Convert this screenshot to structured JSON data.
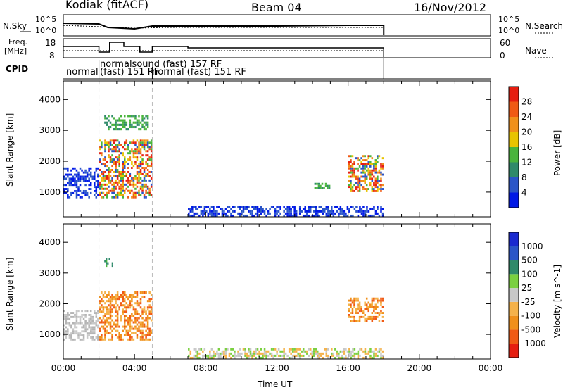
{
  "header": {
    "station": "Kodiak (fitACF)",
    "beam": "Beam 04",
    "date": "16/Nov/2012"
  },
  "top_panels": {
    "noise_left_label": "N.Sky",
    "noise_right_label": "N.Search",
    "noise_left_ticks": [
      "10^5",
      "10^0"
    ],
    "noise_right_ticks": [
      "10^5",
      "10^0"
    ],
    "freq_label_1": "Freq.",
    "freq_label_2": "[MHz]",
    "freq_ticks": [
      "18",
      "8"
    ],
    "nave_ticks": [
      "60",
      "0"
    ],
    "nave_label": "Nave",
    "cpid_label": "CPID",
    "cpid_entries": [
      "normal",
      "normalsound (fast) 157 RF",
      "(fast) 151 RF",
      "normal (fast) 151 RF"
    ]
  },
  "chart_data": [
    {
      "type": "heatmap",
      "title": "",
      "ylabel": "Slant Range [km]",
      "xlabel": "",
      "xlim": [
        "00:00",
        "24:00"
      ],
      "ylim": [
        200,
        4600
      ],
      "yticks": [
        "1000",
        "2000",
        "3000",
        "4000"
      ],
      "colorbar": {
        "label": "Power [dB]",
        "ticks": [
          "4",
          "8",
          "12",
          "16",
          "20",
          "24",
          "28"
        ],
        "colors": [
          "#0019e6",
          "#2a55c8",
          "#2f8a6a",
          "#49b43c",
          "#e8c400",
          "#f0901a",
          "#f05a14",
          "#e61e10"
        ]
      },
      "regions": [
        {
          "t0": 0.0,
          "t1": 2.0,
          "r0": 800,
          "r1": 1800,
          "level": "low"
        },
        {
          "t0": 2.0,
          "t1": 5.0,
          "r0": 800,
          "r1": 2700,
          "level": "high"
        },
        {
          "t0": 2.3,
          "t1": 4.8,
          "r0": 3000,
          "r1": 3500,
          "level": "mid"
        },
        {
          "t0": 7.0,
          "t1": 18.0,
          "r0": 200,
          "r1": 550,
          "level": "low"
        },
        {
          "t0": 14.0,
          "t1": 15.0,
          "r0": 1100,
          "r1": 1300,
          "level": "mid"
        },
        {
          "t0": 16.0,
          "t1": 18.0,
          "r0": 1000,
          "r1": 2200,
          "level": "high"
        }
      ]
    },
    {
      "type": "heatmap",
      "title": "",
      "ylabel": "Slant Range [km]",
      "xlabel": "Time UT",
      "xlim": [
        "00:00",
        "24:00"
      ],
      "ylim": [
        200,
        4600
      ],
      "yticks": [
        "1000",
        "2000",
        "3000",
        "4000"
      ],
      "xticks": [
        "00:00",
        "04:00",
        "08:00",
        "12:00",
        "16:00",
        "20:00",
        "00:00"
      ],
      "colorbar": {
        "label": "Velocity [m s^-1]",
        "ticks": [
          "-1000",
          "-500",
          "-100",
          "-25",
          "25",
          "100",
          "500",
          "1000"
        ],
        "colors": [
          "#e61e10",
          "#f05a14",
          "#f0901a",
          "#f5b24a",
          "#c8c8c8",
          "#7ad040",
          "#2f8a6a",
          "#2a55c8",
          "#1a2ad0"
        ]
      },
      "regions": [
        {
          "t0": 0.0,
          "t1": 2.0,
          "r0": 800,
          "r1": 1800,
          "level": "near-zero"
        },
        {
          "t0": 2.0,
          "t1": 5.0,
          "r0": 800,
          "r1": 2400,
          "level": "negative"
        },
        {
          "t0": 2.3,
          "t1": 2.8,
          "r0": 3200,
          "r1": 3500,
          "level": "positive"
        },
        {
          "t0": 7.0,
          "t1": 18.0,
          "r0": 200,
          "r1": 550,
          "level": "negative-small"
        },
        {
          "t0": 16.0,
          "t1": 18.0,
          "r0": 1400,
          "r1": 2200,
          "level": "negative"
        }
      ]
    }
  ]
}
